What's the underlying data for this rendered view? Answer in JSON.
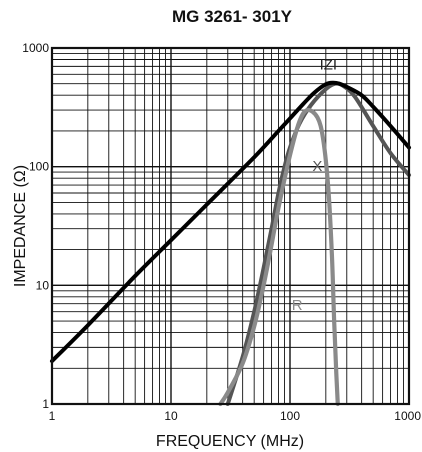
{
  "chart_data": {
    "type": "line",
    "title": "MG 3261-  301Y",
    "xlabel": "FREQUENCY (MHz)",
    "ylabel": "IMPEDANCE (Ω)",
    "x_scale": "log",
    "y_scale": "log",
    "xlim": [
      1,
      1000
    ],
    "ylim": [
      1,
      1000
    ],
    "x_ticks": [
      1,
      10,
      100,
      1000
    ],
    "x_tick_labels": [
      "1",
      "10",
      "100",
      "1000"
    ],
    "y_ticks": [
      1,
      10,
      100,
      1000
    ],
    "y_tick_labels": [
      "1",
      "10",
      "100",
      "1000"
    ],
    "grid": true,
    "series": [
      {
        "name": "IZI",
        "color": "#000000",
        "x": [
          1,
          2,
          5,
          10,
          20,
          50,
          80,
          100,
          130,
          160,
          200,
          230,
          260,
          300,
          400,
          500,
          700,
          1000
        ],
        "y": [
          2.3,
          4.6,
          12,
          24,
          48,
          120,
          200,
          255,
          340,
          420,
          495,
          510,
          500,
          470,
          400,
          320,
          220,
          145
        ]
      },
      {
        "name": "X",
        "color": "#555555",
        "x": [
          30,
          40,
          50,
          60,
          70,
          80,
          90,
          100,
          120,
          150,
          200,
          240,
          280,
          350,
          500,
          700,
          1000
        ],
        "y": [
          1,
          2.5,
          6,
          14,
          30,
          60,
          100,
          145,
          230,
          330,
          450,
          500,
          480,
          390,
          220,
          130,
          85
        ]
      },
      {
        "name": "R",
        "color": "#8a8a8a",
        "x": [
          26,
          30,
          40,
          50,
          60,
          70,
          80,
          100,
          120,
          140,
          170,
          190,
          210,
          225,
          235,
          245,
          252
        ],
        "y": [
          1,
          1.25,
          2.2,
          4.5,
          10,
          22,
          45,
          125,
          240,
          300,
          260,
          170,
          65,
          18,
          5,
          1.8,
          1
        ]
      }
    ],
    "annotations": [
      {
        "text": "IZI",
        "x": 210,
        "y": 660
      },
      {
        "text": "X",
        "x": 170,
        "y": 92
      },
      {
        "text": "R",
        "x": 115,
        "y": 6.2
      }
    ]
  }
}
